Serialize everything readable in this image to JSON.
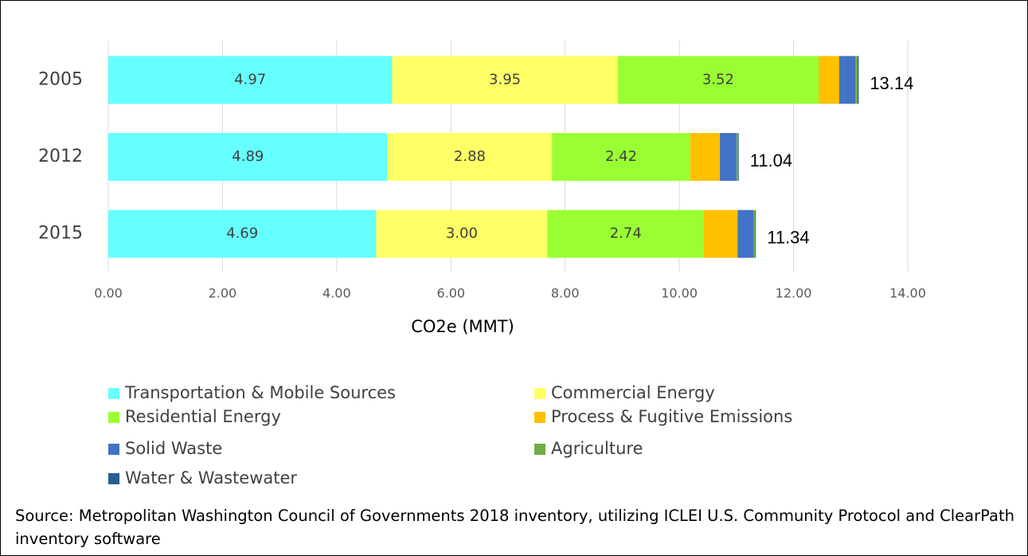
{
  "chart_data": {
    "type": "stacked-bar-horizontal",
    "categories": [
      "2005",
      "2012",
      "2015"
    ],
    "series": [
      {
        "name": "Transportation & Mobile Sources",
        "color": "#66ffff",
        "values": [
          4.97,
          4.89,
          4.69
        ],
        "value_labels": [
          "4.97",
          "4.89",
          "4.69"
        ]
      },
      {
        "name": "Commercial Energy",
        "color": "#ffff66",
        "values": [
          3.95,
          2.88,
          3.0
        ],
        "value_labels": [
          "3.95",
          "2.88",
          "3.00"
        ]
      },
      {
        "name": "Residential Energy",
        "color": "#99ff33",
        "values": [
          3.52,
          2.42,
          2.74
        ],
        "value_labels": [
          "3.52",
          "2.42",
          "2.74"
        ]
      },
      {
        "name": "Process & Fugitive Emissions",
        "color": "#ffc000",
        "values": [
          0.36,
          0.52,
          0.59
        ]
      },
      {
        "name": "Solid Waste",
        "color": "#4472c4",
        "values": [
          0.28,
          0.29,
          0.28
        ]
      },
      {
        "name": "Agriculture",
        "color": "#70ad47",
        "values": [
          0.04,
          0.03,
          0.03
        ]
      },
      {
        "name": "Water & Wastewater",
        "color": "#255e91",
        "values": [
          0.02,
          0.01,
          0.01
        ]
      }
    ],
    "totals": [
      13.14,
      11.04,
      11.34
    ],
    "xlabel": "CO2e (MMT)",
    "xlim": [
      0,
      14
    ],
    "xticks": [
      {
        "value": 0,
        "label": "0.00"
      },
      {
        "value": 2,
        "label": "2.00"
      },
      {
        "value": 4,
        "label": "4.00"
      },
      {
        "value": 6,
        "label": "6.00"
      },
      {
        "value": 8,
        "label": "8.00"
      },
      {
        "value": 10,
        "label": "10.00"
      },
      {
        "value": 12,
        "label": "12.00"
      },
      {
        "value": 14,
        "label": "14.00"
      }
    ],
    "grid": true,
    "legend": "bottom"
  },
  "source": "Source: Metropolitan Washington Council of Governments 2018 inventory, utilizing ICLEI U.S. Community Protocol and ClearPath inventory software"
}
